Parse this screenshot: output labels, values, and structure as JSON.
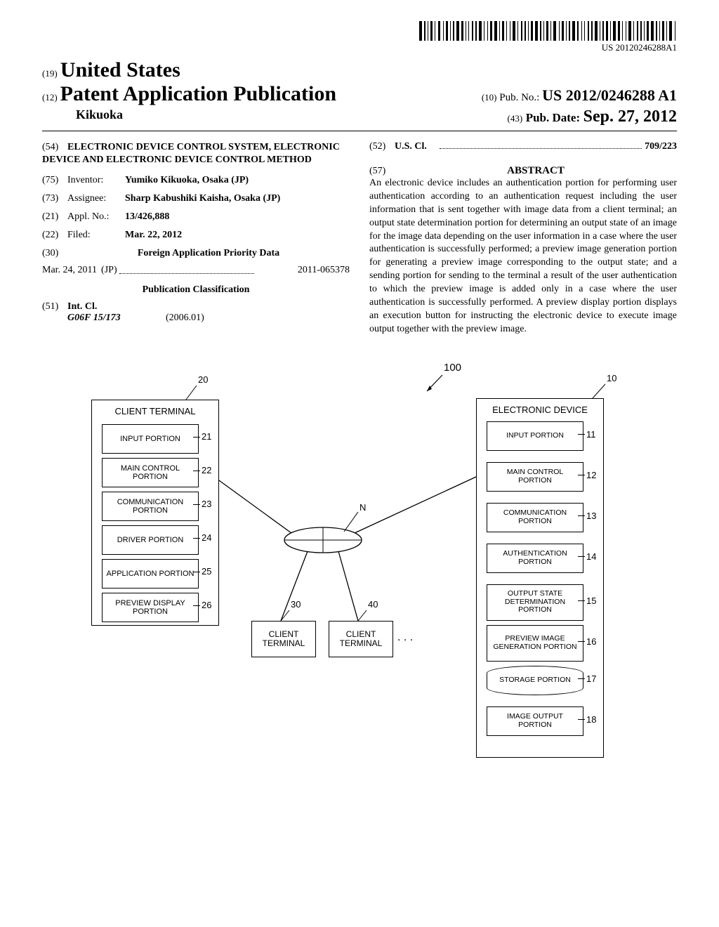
{
  "barcode_number": "US 20120246288A1",
  "header": {
    "country_prefix": "(19)",
    "country": "United States",
    "pub_prefix": "(12)",
    "pub_title": "Patent Application Publication",
    "pubno_prefix": "(10)",
    "pubno_label": "Pub. No.:",
    "pubno": "US 2012/0246288 A1",
    "author": "Kikuoka",
    "date_prefix": "(43)",
    "date_label": "Pub. Date:",
    "date": "Sep. 27, 2012"
  },
  "left_col": {
    "title_num": "(54)",
    "title": "ELECTRONIC DEVICE CONTROL SYSTEM, ELECTRONIC DEVICE AND ELECTRONIC DEVICE CONTROL METHOD",
    "inventor_num": "(75)",
    "inventor_label": "Inventor:",
    "inventor_value": "Yumiko Kikuoka, Osaka (JP)",
    "assignee_num": "(73)",
    "assignee_label": "Assignee:",
    "assignee_value": "Sharp Kabushiki Kaisha, Osaka (JP)",
    "applno_num": "(21)",
    "applno_label": "Appl. No.:",
    "applno_value": "13/426,888",
    "filed_num": "(22)",
    "filed_label": "Filed:",
    "filed_value": "Mar. 22, 2012",
    "foreign_num": "(30)",
    "foreign_heading": "Foreign Application Priority Data",
    "priority_date": "Mar. 24, 2011",
    "priority_country": "(JP)",
    "priority_number": "2011-065378",
    "pubclass_heading": "Publication Classification",
    "intcl_num": "(51)",
    "intcl_label": "Int. Cl.",
    "intcl_code": "G06F 15/173",
    "intcl_year": "(2006.01)"
  },
  "right_col": {
    "uscl_num": "(52)",
    "uscl_label": "U.S. Cl.",
    "uscl_value": "709/223",
    "abstract_num": "(57)",
    "abstract_heading": "ABSTRACT",
    "abstract_text": "An electronic device includes an authentication portion for performing user authentication according to an authentication request including the user information that is sent together with image data from a client terminal; an output state determination portion for determining an output state of an image for the image data depending on the user information in a case where the user authentication is successfully performed; a preview image generation portion for generating a preview image corresponding to the output state; and a sending portion for sending to the terminal a result of the user authentication to which the preview image is added only in a case where the user authentication is successfully performed. A preview display portion displays an execution button for instructing the electronic device to execute image output together with the preview image."
  },
  "figure": {
    "system_ref": "100",
    "client": {
      "ref": "20",
      "title": "CLIENT TERMINAL",
      "blocks": [
        {
          "label": "INPUT PORTION",
          "ref": "21"
        },
        {
          "label": "MAIN CONTROL PORTION",
          "ref": "22"
        },
        {
          "label": "COMMUNICATION PORTION",
          "ref": "23"
        },
        {
          "label": "DRIVER PORTION",
          "ref": "24"
        },
        {
          "label": "APPLICATION PORTION",
          "ref": "25"
        },
        {
          "label": "PREVIEW DISPLAY PORTION",
          "ref": "26"
        }
      ]
    },
    "device": {
      "ref": "10",
      "title": "ELECTRONIC DEVICE",
      "blocks": [
        {
          "label": "INPUT PORTION",
          "ref": "11"
        },
        {
          "label": "MAIN CONTROL PORTION",
          "ref": "12"
        },
        {
          "label": "COMMUNICATION PORTION",
          "ref": "13"
        },
        {
          "label": "AUTHENTICATION PORTION",
          "ref": "14"
        },
        {
          "label": "OUTPUT STATE DETERMINATION PORTION",
          "ref": "15"
        },
        {
          "label": "PREVIEW IMAGE GENERATION PORTION",
          "ref": "16"
        },
        {
          "label": "STORAGE PORTION",
          "ref": "17"
        },
        {
          "label": "IMAGE OUTPUT PORTION",
          "ref": "18"
        }
      ]
    },
    "network_label": "N",
    "terminals": [
      {
        "label": "CLIENT TERMINAL",
        "ref": "30"
      },
      {
        "label": "CLIENT TERMINAL",
        "ref": "40"
      }
    ],
    "ellipsis": ". . ."
  }
}
